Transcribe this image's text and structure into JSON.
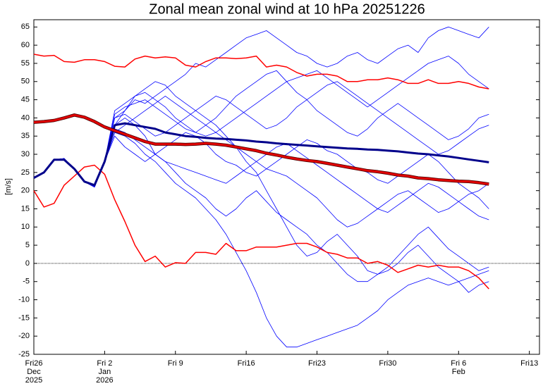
{
  "chart_data": {
    "type": "line",
    "title": "Zonal mean zonal wind at 10 hPa 20251226",
    "y_label": "[m/s]",
    "x": [
      0,
      1,
      2,
      3,
      4,
      5,
      6,
      7,
      8,
      9,
      10,
      11,
      12,
      13,
      14,
      15,
      16,
      17,
      18,
      19,
      20,
      21,
      22,
      23,
      24,
      25,
      26,
      27,
      28,
      29,
      30,
      31,
      32,
      33,
      34,
      35,
      36,
      37,
      38,
      39,
      40,
      41,
      42,
      43,
      44,
      45
    ],
    "xlim": [
      0,
      50
    ],
    "xticks": [
      {
        "value": 0,
        "label": "Fri26"
      },
      {
        "value": 7,
        "label": "Fri 2"
      },
      {
        "value": 14,
        "label": "Fri 9"
      },
      {
        "value": 21,
        "label": "Fri16"
      },
      {
        "value": 28,
        "label": "Fri23"
      },
      {
        "value": 35,
        "label": "Fri30"
      },
      {
        "value": 42,
        "label": "Fri 6"
      },
      {
        "value": 49,
        "label": "Fri13"
      }
    ],
    "xtick_month_labels": [
      {
        "value": 0,
        "label": "Dec"
      },
      {
        "value": 7,
        "label": "Jan"
      },
      {
        "value": 42,
        "label": "Feb"
      }
    ],
    "xtick_year_labels": [
      {
        "value": 0,
        "label": "2025"
      },
      {
        "value": 7,
        "label": "2026"
      }
    ],
    "ylim": [
      -25,
      67
    ],
    "yticks": [
      -25,
      -20,
      -15,
      -10,
      -5,
      0,
      5,
      10,
      15,
      20,
      25,
      30,
      35,
      40,
      45,
      50,
      55,
      60,
      65
    ],
    "zero_line": true,
    "series": [
      {
        "color": "#0000ff",
        "line_width": 0.8,
        "values": [
          23.5,
          25,
          28.5,
          28.8,
          26,
          22.5,
          21,
          28,
          40,
          42,
          45,
          44,
          46,
          48,
          50,
          52,
          55,
          54,
          56,
          58,
          60,
          62,
          63,
          64,
          62,
          60,
          58,
          57,
          55,
          54,
          55,
          57,
          58,
          56,
          55,
          57,
          59,
          60,
          58,
          62,
          64,
          65,
          64,
          63,
          62,
          65
        ]
      },
      {
        "color": "#0000ff",
        "line_width": 0.8,
        "values": [
          23.5,
          25,
          28.5,
          28.8,
          26,
          22.5,
          21,
          28,
          36,
          35,
          33,
          30,
          28,
          25,
          22,
          20,
          18,
          15,
          12,
          8,
          3,
          -2,
          -8,
          -15,
          -20,
          -23,
          -23,
          -22,
          -21,
          -20,
          -19,
          -18,
          -17,
          -15,
          -13,
          -10,
          -8,
          -6,
          -5,
          -4,
          -5,
          -6,
          -5,
          -4,
          -3,
          -2
        ]
      },
      {
        "color": "#0000ff",
        "line_width": 0.8,
        "values": [
          23.5,
          25,
          28.5,
          28.8,
          26,
          22.5,
          21,
          28,
          38,
          40,
          38,
          35,
          30,
          28,
          25,
          22,
          20,
          18,
          15,
          13,
          15,
          18,
          20,
          17,
          14,
          12,
          10,
          8,
          5,
          3,
          0,
          -3,
          -5,
          -5,
          -3,
          -2,
          0,
          3,
          5,
          2,
          -1,
          -3,
          -5,
          -8,
          -6,
          -5
        ]
      },
      {
        "color": "#0000ff",
        "line_width": 0.8,
        "values": [
          23.5,
          25,
          28.5,
          28.8,
          26,
          22.5,
          21,
          28,
          42,
          44,
          46,
          47,
          45,
          43,
          40,
          38,
          36,
          38,
          40,
          43,
          46,
          48,
          50,
          52,
          53,
          50,
          47,
          45,
          42,
          40,
          38,
          36,
          35,
          37,
          40,
          42,
          44,
          42,
          40,
          38,
          36,
          34,
          35,
          37,
          40,
          41
        ]
      },
      {
        "color": "#0000ff",
        "line_width": 0.8,
        "values": [
          23.5,
          25,
          28.5,
          28.8,
          26,
          22.5,
          21,
          28,
          35,
          32,
          30,
          28,
          30,
          32,
          34,
          36,
          35,
          33,
          30,
          28,
          27,
          25,
          24,
          26,
          28,
          30,
          32,
          34,
          33,
          31,
          30,
          28,
          26,
          25,
          23,
          22,
          24,
          26,
          28,
          30,
          28,
          25,
          22,
          20,
          18,
          15
        ]
      },
      {
        "color": "#0000ff",
        "line_width": 0.8,
        "values": [
          23.5,
          25,
          28.5,
          28.8,
          26,
          22.5,
          21,
          28,
          36,
          38,
          40,
          42,
          44,
          46,
          44,
          42,
          40,
          38,
          36,
          34,
          32,
          30,
          28,
          26,
          25,
          24,
          22,
          20,
          18,
          15,
          12,
          10,
          11,
          13,
          15,
          17,
          19,
          20,
          18,
          16,
          14,
          15,
          17,
          19,
          20,
          22
        ]
      },
      {
        "color": "#0000ff",
        "line_width": 0.8,
        "values": [
          23.5,
          25,
          28.5,
          28.8,
          26,
          22.5,
          21,
          28,
          38,
          42,
          46,
          48,
          50,
          49,
          46,
          44,
          42,
          40,
          38,
          35,
          32,
          28,
          25,
          20,
          15,
          10,
          5,
          2,
          3,
          6,
          8,
          5,
          2,
          -2,
          -3,
          -1,
          2,
          5,
          8,
          10,
          7,
          4,
          2,
          0,
          -2,
          -1
        ]
      },
      {
        "color": "#0000ff",
        "line_width": 0.8,
        "values": [
          23.5,
          25,
          28.5,
          28.8,
          26,
          22.5,
          21,
          28,
          40,
          41,
          39,
          37,
          35,
          36,
          38,
          40,
          42,
          44,
          46,
          45,
          43,
          41,
          39,
          37,
          38,
          40,
          43,
          45,
          47,
          49,
          50,
          48,
          46,
          44,
          42,
          40,
          38,
          36,
          34,
          32,
          30,
          31,
          33,
          35,
          37,
          38
        ]
      },
      {
        "color": "#0000ff",
        "line_width": 0.8,
        "values": [
          23.5,
          25,
          28.5,
          28.8,
          26,
          22.5,
          21,
          28,
          37,
          36,
          34,
          32,
          30,
          28,
          27,
          26,
          25,
          24,
          23,
          22,
          24,
          26,
          28,
          30,
          32,
          33,
          31,
          29,
          27,
          25,
          23,
          21,
          19,
          17,
          15,
          14,
          16,
          18,
          20,
          22,
          21,
          19,
          17,
          15,
          13,
          12
        ]
      },
      {
        "color": "#0000ff",
        "line_width": 0.8,
        "values": [
          23.5,
          25,
          28.5,
          28.8,
          26,
          22.5,
          21,
          28,
          41,
          43,
          44,
          45,
          43,
          41,
          39,
          37,
          36,
          35,
          36,
          38,
          40,
          42,
          44,
          46,
          48,
          50,
          51,
          52,
          53,
          51,
          49,
          47,
          45,
          43,
          45,
          47,
          49,
          51,
          53,
          55,
          56,
          57,
          55,
          52,
          50,
          48
        ]
      },
      {
        "color": "#ff0000",
        "line_width": 1.5,
        "values": [
          57.5,
          57,
          57.2,
          55.5,
          55.3,
          56,
          56,
          55.5,
          54.2,
          54,
          56.2,
          57,
          56.5,
          56.8,
          56.5,
          54.5,
          54,
          55.5,
          56.5,
          56.5,
          56.3,
          56.5,
          57,
          54,
          54.5,
          54,
          52.5,
          51.5,
          52,
          52,
          51.5,
          50,
          50,
          50.5,
          50.5,
          51,
          50.5,
          49.5,
          49.5,
          50.5,
          49.5,
          49.5,
          50,
          49.5,
          48.5,
          48
        ]
      },
      {
        "color": "#ff0000",
        "line_width": 1.5,
        "values": [
          20,
          15.5,
          16.5,
          21.5,
          24,
          26.5,
          27,
          24.5,
          17.5,
          11.5,
          5,
          0.5,
          2,
          -1,
          0.2,
          0,
          3,
          3,
          2.5,
          5.5,
          3.5,
          3.5,
          4.5,
          4.5,
          4.5,
          5,
          5.5,
          5.5,
          4.5,
          3,
          2.5,
          1.5,
          1.5,
          0,
          0.5,
          -0.5,
          -2.5,
          -1.5,
          -0.5,
          -1,
          -0.5,
          -1,
          -1,
          -2,
          -4,
          -7
        ]
      },
      {
        "color": "#00008b",
        "line_width": 3,
        "values": [
          23.5,
          25,
          28.5,
          28.5,
          26,
          22.5,
          21.5,
          28,
          38,
          38.5,
          38,
          37.5,
          37,
          36,
          35.5,
          35,
          34.8,
          34.5,
          34.3,
          34.2,
          34,
          33.8,
          33.5,
          33.3,
          33,
          32.8,
          32.6,
          32.4,
          32.2,
          32,
          31.8,
          31.6,
          31.5,
          31.3,
          31.2,
          31,
          30.8,
          30.5,
          30.2,
          30,
          29.7,
          29.4,
          29,
          28.6,
          28.2,
          27.8
        ]
      },
      {
        "color": "#e00000",
        "line_width": 3,
        "values": [
          38.8,
          39,
          39.3,
          40,
          40.8,
          40.2,
          39,
          37.5,
          36.5,
          35.5,
          34.5,
          33.5,
          32.8,
          32.8,
          32.8,
          32.7,
          32.8,
          33,
          32.8,
          32.5,
          32,
          31.5,
          31,
          30.3,
          29.8,
          29.2,
          28.7,
          28.3,
          28,
          27.5,
          27,
          26.5,
          26,
          25.5,
          25.2,
          24.8,
          24.3,
          24,
          23.5,
          23.3,
          23,
          22.8,
          22.6,
          22.5,
          22.2,
          21.8
        ]
      }
    ]
  }
}
